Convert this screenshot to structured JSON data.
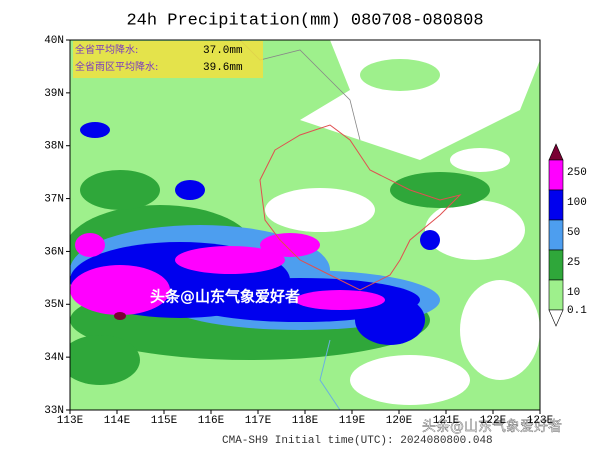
{
  "title": "24h Precipitation(mm) 080708-080808",
  "info_box": {
    "rows": [
      {
        "label": "全省平均降水:",
        "value": "37.0mm"
      },
      {
        "label": "全省雨区平均降水:",
        "value": "39.6mm"
      }
    ]
  },
  "lon_ticks": [
    "113E",
    "114E",
    "115E",
    "116E",
    "117E",
    "118E",
    "119E",
    "120E",
    "121E",
    "122E",
    "123E"
  ],
  "lat_ticks": [
    "40N",
    "39N",
    "38N",
    "37N",
    "36N",
    "35N",
    "34N",
    "33N"
  ],
  "legend": {
    "levels": [
      250,
      100,
      50,
      25,
      10,
      0.1
    ],
    "colors": [
      "#ff00ff",
      "#0000ee",
      "#4d9eef",
      "#2fa73a",
      "#9ef08c",
      "#ffffff"
    ],
    "top_color": "#7a0033"
  },
  "footer": "CMA-SH9   Initial time(UTC): 2024080800.048",
  "watermarks": [
    "头条@山东气象爱好者",
    "头条@山东气象爱好者"
  ]
}
